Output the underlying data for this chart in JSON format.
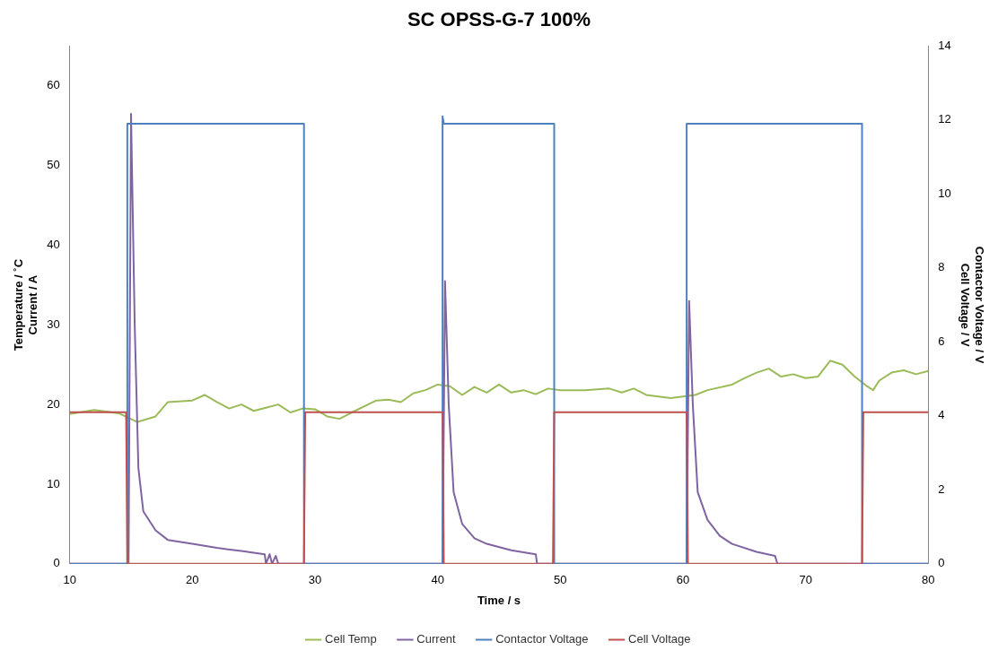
{
  "chart_data": {
    "type": "line",
    "title": "SC OPSS-G-7 100%",
    "xlabel": "Time / s",
    "ylabel": "Temperature / ˚C\nCurrent / A",
    "y2label": "Contactor Voltage / V\nCell Voltage / V",
    "xlim": [
      10,
      80
    ],
    "xticks": [
      10,
      20,
      30,
      40,
      50,
      60,
      70,
      80
    ],
    "ylim": [
      0,
      65
    ],
    "yticks": [
      0,
      10,
      20,
      30,
      40,
      50,
      60
    ],
    "y2lim": [
      0,
      14
    ],
    "y2ticks": [
      0,
      2,
      4,
      6,
      8,
      10,
      12,
      14
    ],
    "grid": false,
    "legend": "bottom",
    "marker": "none",
    "line_style": "solid",
    "series": [
      {
        "name": "Cell Temp",
        "color": "#9bbb59",
        "x": [
          10,
          12,
          14,
          15.5,
          17,
          18,
          20,
          21,
          22,
          23,
          24,
          25,
          26,
          27,
          28,
          29,
          30,
          31,
          32,
          33,
          35,
          36,
          37,
          38,
          39,
          40,
          41,
          42,
          43,
          44,
          45,
          46,
          47,
          48,
          49,
          50,
          52,
          54,
          55,
          56,
          57,
          58,
          59,
          60,
          61,
          62,
          64,
          65,
          66,
          67,
          68,
          69,
          70,
          71,
          72,
          73,
          74,
          75,
          75.5,
          76,
          77,
          78,
          79,
          80
        ],
        "values": [
          18.8,
          19.3,
          18.9,
          17.8,
          18.5,
          20.3,
          20.5,
          21.2,
          20.3,
          19.5,
          20,
          19.2,
          19.6,
          20,
          19,
          19.5,
          19.4,
          18.5,
          18.2,
          19,
          20.5,
          20.6,
          20.3,
          21.4,
          21.8,
          22.5,
          22.3,
          21.2,
          22.2,
          21.5,
          22.5,
          21.5,
          21.8,
          21.3,
          22,
          21.8,
          21.8,
          22,
          21.5,
          22,
          21.2,
          21,
          20.8,
          21,
          21.2,
          21.8,
          22.5,
          23.3,
          24,
          24.5,
          23.5,
          23.8,
          23.3,
          23.5,
          25.5,
          25,
          23.5,
          22.3,
          21.8,
          23,
          24,
          24.3,
          23.8,
          24.2
        ]
      },
      {
        "name": "Current",
        "color": "#8064a2",
        "x": [
          10,
          14.8,
          15,
          15.3,
          15.6,
          16,
          17,
          18,
          20,
          22,
          24,
          25.9,
          26,
          26.3,
          26.5,
          26.8,
          27,
          28,
          29,
          40.4,
          40.6,
          40.9,
          41.3,
          42,
          43,
          44,
          46,
          48,
          48.1,
          48.3,
          50,
          60.3,
          60.5,
          60.8,
          61.2,
          62,
          63,
          64,
          66,
          67.5,
          67.7,
          80
        ],
        "values": [
          0,
          0,
          56.5,
          30,
          12,
          6.6,
          4.2,
          3,
          2.5,
          2,
          1.6,
          1.2,
          0,
          1.2,
          0,
          1,
          0,
          0,
          0,
          0,
          35.5,
          20,
          9,
          5,
          3.2,
          2.5,
          1.7,
          1.2,
          0,
          0,
          0,
          0,
          33,
          20,
          9,
          5.5,
          3.5,
          2.5,
          1.5,
          1,
          0,
          0
        ]
      },
      {
        "name": "Contactor Voltage",
        "color": "#4f81bd",
        "x": [
          10,
          14.7,
          14.7,
          29.1,
          29.1,
          40.4,
          40.4,
          40.5,
          49.5,
          49.5,
          60.3,
          60.3,
          74.6,
          74.6,
          80
        ],
        "values": [
          0,
          0,
          11.9,
          11.9,
          0,
          0,
          12.1,
          11.9,
          11.9,
          0,
          0,
          11.9,
          11.9,
          0,
          0
        ],
        "axis": "y2"
      },
      {
        "name": "Cell Voltage",
        "color": "#c0504d",
        "x": [
          10,
          14.6,
          14.7,
          29.1,
          29.2,
          40.4,
          40.5,
          49.4,
          49.5,
          60.3,
          60.4,
          74.6,
          74.7,
          80
        ],
        "values": [
          4.1,
          4.1,
          0,
          0,
          4.1,
          4.1,
          0,
          0,
          4.1,
          4.1,
          0,
          0,
          4.1,
          4.1
        ],
        "axis": "y2"
      }
    ]
  }
}
